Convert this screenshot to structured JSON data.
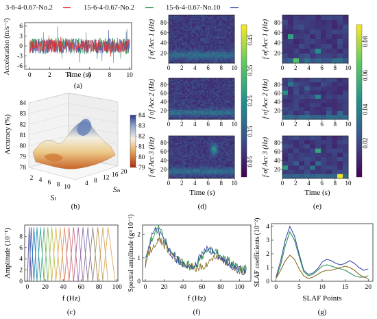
{
  "legend": {
    "entries": [
      {
        "label": "3-6-4-0.67-No.2",
        "color": "#e8282a"
      },
      {
        "label": "15-6-4-0.67-No.2",
        "color": "#2a8f4e"
      },
      {
        "label": "15-6-4-0.67-No.10",
        "color": "#3b4ea8"
      }
    ]
  },
  "chart_data": [
    {
      "id": "a",
      "panel_label": "(a)",
      "type": "line",
      "xlabel": "Time (s)",
      "ylabel": "Acceleration (m/s⁻²)",
      "xlim": [
        -0.5,
        10.2
      ],
      "ylim": [
        -7,
        7
      ],
      "xticks": [
        0,
        2,
        4,
        6,
        8,
        10
      ],
      "yticks": [
        6,
        3,
        0,
        -3,
        -6
      ],
      "series_note_colors": [
        "#2a8f4e",
        "#3b4ea8",
        "#e8282a"
      ],
      "amplitudes": [
        2.5,
        2.2,
        2.0
      ],
      "spikes": [
        6,
        5,
        4
      ]
    },
    {
      "id": "b",
      "panel_label": "(b)",
      "type": "surface",
      "zlabel": "Accuracy (%)",
      "xlabel": "Sₗ",
      "ylabel": "Sₙ",
      "zlim": [
        78,
        84
      ],
      "zticks": [
        78,
        79,
        80,
        81,
        82,
        83,
        84
      ],
      "xticks": [
        2,
        4,
        6,
        8,
        10
      ],
      "yticks": [
        4,
        8,
        12,
        16,
        20
      ],
      "colorbar": {
        "ticks": [
          84,
          83,
          82,
          81,
          80,
          79
        ],
        "low_color": "#b02a10",
        "high_color": "#2c3c8c"
      }
    },
    {
      "id": "c",
      "panel_label": "(c)",
      "type": "line",
      "xlabel": "f (Hz)",
      "ylabel": "Amplitude (10⁻¹)",
      "xlim": [
        -3,
        101
      ],
      "ylim": [
        0,
        10
      ],
      "xticks": [
        0,
        20,
        40,
        60,
        80,
        100
      ],
      "yticks": [
        0,
        2,
        4,
        6,
        8
      ],
      "filters": 20,
      "peak": 9.6
    },
    {
      "id": "d",
      "panel_label": "(d)",
      "type": "heatmap",
      "xlabel": "Time (s)",
      "ylabels": [
        "f of Acc 1 (Hz)",
        "f of Acc 2 (Hz)",
        "f of Acc 3 (Hz)"
      ],
      "xticks": [
        0,
        2,
        4,
        6,
        8,
        10
      ],
      "yticks": [
        20,
        40,
        60,
        80
      ],
      "colorbar_ticks": [
        0.45,
        0.35,
        0.25,
        0.15,
        0.05
      ]
    },
    {
      "id": "e",
      "panel_label": "(e)",
      "type": "heatmap",
      "xlabel": "Time (s)",
      "ylabels": [
        "f of Acc 1 (Hz)",
        "f of Acc 2 (Hz)",
        "f of Acc 3 (Hz)"
      ],
      "xticks": [
        0,
        2,
        4,
        6,
        8,
        10
      ],
      "yticks": [
        20,
        40,
        60,
        80
      ],
      "colorbar_ticks": [
        0.08,
        0.06,
        0.04,
        0.02
      ]
    },
    {
      "id": "f",
      "panel_label": "(f)",
      "type": "line",
      "xlabel": "f (Hz)",
      "ylabel": "Spectral amplitude (g×10⁻²)",
      "xlim": [
        -3,
        112
      ],
      "ylim": [
        0,
        2.4
      ],
      "xticks": [
        0,
        20,
        40,
        60,
        80,
        100
      ],
      "yticks": [
        0,
        1,
        2
      ],
      "series": [
        {
          "name": "3-6-4-0.67-No.2",
          "color": "#8a6a1e",
          "values": [
            0.7,
            1.2,
            1.4,
            1.6,
            1.8,
            1.7,
            1.5,
            1.3,
            1.2,
            1.0,
            0.9,
            0.8,
            0.7,
            0.7,
            0.6,
            0.6,
            0.5,
            0.6,
            0.7,
            0.8,
            0.9,
            1.0,
            1.1,
            1.0,
            0.9,
            0.8,
            0.7,
            0.6,
            0.5,
            0.5,
            0.45,
            0.5
          ]
        },
        {
          "name": "15-6-4-0.67-No.2",
          "color": "#2a8f4e",
          "values": [
            0.8,
            1.5,
            1.8,
            2.1,
            2.3,
            2.0,
            1.7,
            1.5,
            1.3,
            1.1,
            0.9,
            0.8,
            0.7,
            0.7,
            0.6,
            0.7,
            0.8,
            1.0,
            1.2,
            1.3,
            1.4,
            1.3,
            1.2,
            1.1,
            1.0,
            0.9,
            0.8,
            0.7,
            0.6,
            0.5,
            0.5,
            0.6
          ]
        },
        {
          "name": "15-6-4-0.67-No.10",
          "color": "#3b4ea8",
          "values": [
            0.9,
            1.6,
            1.9,
            2.2,
            2.1,
            1.9,
            1.6,
            1.4,
            1.2,
            1.0,
            0.9,
            0.8,
            0.7,
            0.6,
            0.6,
            0.7,
            0.9,
            1.1,
            1.3,
            1.4,
            1.3,
            1.2,
            1.1,
            1.0,
            0.9,
            0.8,
            0.7,
            0.6,
            0.5,
            0.5,
            0.4,
            0.6
          ]
        }
      ]
    },
    {
      "id": "g",
      "panel_label": "(g)",
      "type": "line",
      "xlabel": "SLAF Points",
      "ylabel": "SLAF coefficients (10⁻²)",
      "xlim": [
        -1,
        21
      ],
      "ylim": [
        0,
        4.2
      ],
      "xticks": [
        0,
        5,
        10,
        15,
        20
      ],
      "yticks": [
        0,
        1,
        2,
        3,
        4
      ],
      "x": [
        0,
        1,
        2,
        3,
        4,
        5,
        6,
        7,
        8,
        9,
        10,
        11,
        12,
        13,
        14,
        15,
        16,
        17,
        18,
        19,
        20
      ],
      "series": [
        {
          "name": "15-6-4-0.67-No.10",
          "color": "#3b4ea8",
          "values": [
            0.3,
            1.5,
            3.0,
            4.0,
            3.3,
            2.0,
            0.8,
            0.5,
            0.6,
            0.9,
            1.4,
            1.6,
            1.5,
            1.3,
            1.2,
            1.3,
            1.5,
            1.3,
            1.0,
            0.8,
            0.9
          ]
        },
        {
          "name": "15-6-4-0.67-No.2",
          "color": "#2a8f4e",
          "values": [
            0.2,
            1.2,
            2.6,
            3.6,
            3.0,
            1.8,
            0.7,
            0.4,
            0.5,
            0.8,
            1.1,
            1.2,
            1.1,
            1.0,
            0.9,
            0.8,
            0.6,
            0.4,
            0.3,
            0.3,
            0.4
          ]
        },
        {
          "name": "3-6-4-0.67-No.2",
          "color": "#8a6a1e",
          "values": [
            0.2,
            0.8,
            1.5,
            1.9,
            1.6,
            0.9,
            0.4,
            0.2,
            0.3,
            0.5,
            0.7,
            0.8,
            0.8,
            0.9,
            1.0,
            1.1,
            1.0,
            0.8,
            0.5,
            0.3,
            0.2
          ]
        }
      ]
    }
  ]
}
